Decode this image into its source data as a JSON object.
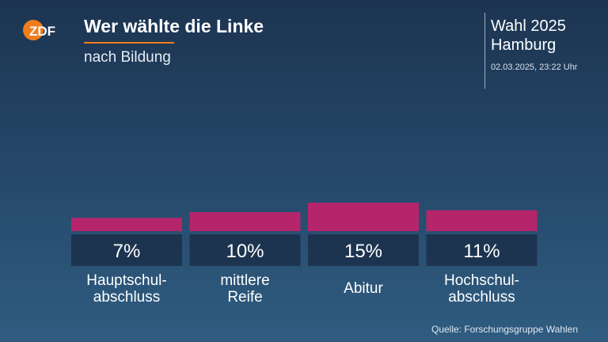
{
  "header": {
    "logo_text": "ZDF",
    "title": "Wer wählte die Linke",
    "subtitle": "nach Bildung",
    "election_line1": "Wahl 2025",
    "election_line2": "Hamburg",
    "timestamp": "02.03.2025, 23:22 Uhr"
  },
  "footer": {
    "source": "Quelle: Forschungsgruppe Wahlen"
  },
  "colors": {
    "bar": "#b5256b",
    "label_box": "#1d3450",
    "accent": "#f07d1c"
  },
  "chart_data": {
    "type": "bar",
    "categories": [
      [
        "Hauptschul-",
        "abschluss"
      ],
      [
        "mittlere",
        "Reife"
      ],
      [
        "Abitur"
      ],
      [
        "Hochschul-",
        "abschluss"
      ]
    ],
    "values": [
      7,
      10,
      15,
      11
    ],
    "value_labels": [
      "7%",
      "10%",
      "15%",
      "11%"
    ],
    "unit": "%"
  }
}
